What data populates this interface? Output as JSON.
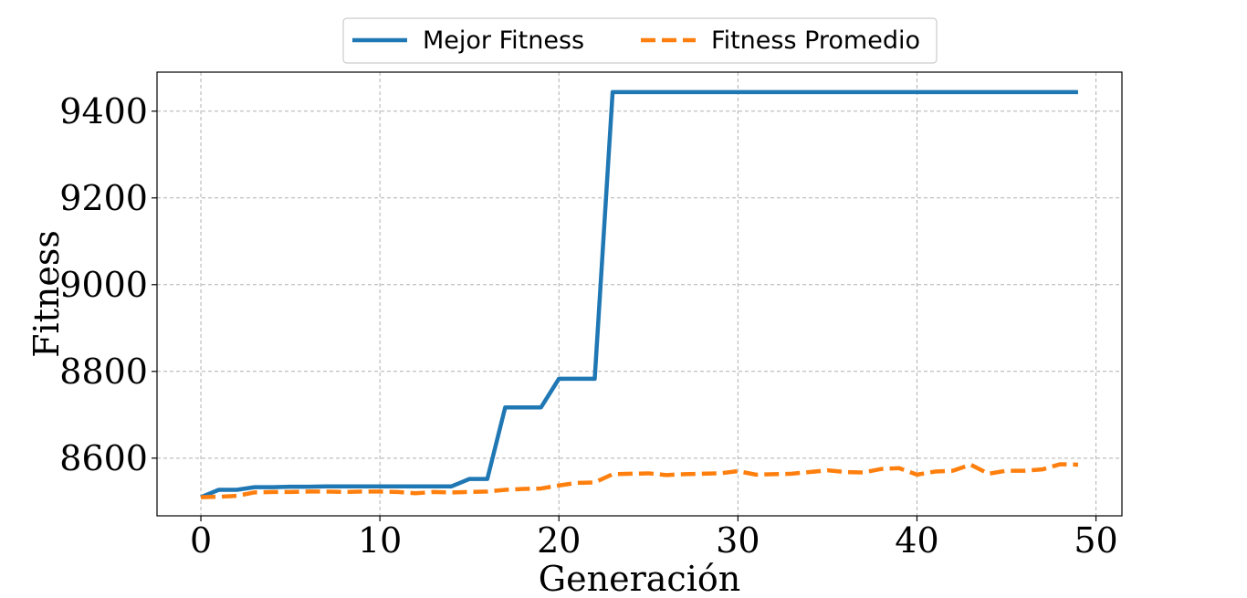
{
  "chart_data": {
    "type": "line",
    "xlabel": "Generación",
    "ylabel": "Fitness",
    "xlim": [
      -2.45,
      51.45
    ],
    "ylim": [
      8467,
      9490
    ],
    "xticks": [
      0,
      10,
      20,
      30,
      40,
      50
    ],
    "yticks": [
      8600,
      8800,
      9000,
      9200,
      9400
    ],
    "grid": true,
    "legend": "top-center-outside",
    "x": [
      0,
      1,
      2,
      3,
      4,
      5,
      6,
      7,
      8,
      9,
      10,
      11,
      12,
      13,
      14,
      15,
      16,
      17,
      18,
      19,
      20,
      21,
      22,
      23,
      24,
      25,
      26,
      27,
      28,
      29,
      30,
      31,
      32,
      33,
      34,
      35,
      36,
      37,
      38,
      39,
      40,
      41,
      42,
      43,
      44,
      45,
      46,
      47,
      48,
      49
    ],
    "series": [
      {
        "name": "Mejor Fitness",
        "color": "#1f77b4",
        "style": "solid",
        "values": [
          8510,
          8527,
          8527,
          8533,
          8533,
          8534,
          8534,
          8535,
          8535,
          8535,
          8535,
          8535,
          8535,
          8535,
          8535,
          8552,
          8552,
          8717,
          8717,
          8717,
          8783,
          8783,
          8783,
          9444,
          9444,
          9444,
          9444,
          9444,
          9444,
          9444,
          9444,
          9444,
          9444,
          9444,
          9444,
          9444,
          9444,
          9444,
          9444,
          9444,
          9444,
          9444,
          9444,
          9444,
          9444,
          9444,
          9444,
          9444,
          9444,
          9444
        ]
      },
      {
        "name": "Fitness Promedio",
        "color": "#ff7f0e",
        "style": "dashed",
        "values": [
          8510,
          8511,
          8513,
          8521,
          8522,
          8522,
          8523,
          8523,
          8522,
          8523,
          8523,
          8522,
          8519,
          8522,
          8521,
          8522,
          8523,
          8527,
          8529,
          8530,
          8537,
          8543,
          8544,
          8563,
          8564,
          8565,
          8561,
          8563,
          8564,
          8565,
          8570,
          8562,
          8563,
          8564,
          8568,
          8572,
          8568,
          8567,
          8575,
          8577,
          8562,
          8569,
          8571,
          8585,
          8564,
          8571,
          8571,
          8574,
          8586,
          8585
        ]
      }
    ]
  }
}
